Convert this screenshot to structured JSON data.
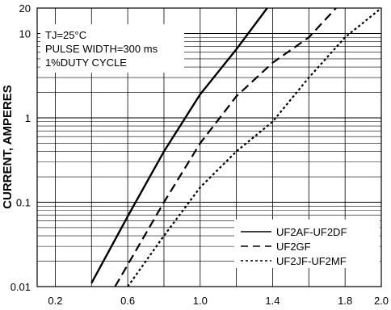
{
  "chart_data": {
    "type": "line",
    "title": "",
    "xlabel": "",
    "ylabel": "CURRENT, AMPERES",
    "xlim": [
      0.1,
      2.0
    ],
    "ylim": [
      0.01,
      20
    ],
    "yscale": "log",
    "grid": true,
    "x_ticks": [
      0.2,
      0.6,
      1.0,
      1.4,
      1.8,
      2.0
    ],
    "x_tick_labels": [
      "0.2",
      "0.6",
      "1.0",
      "1.4",
      "1.8",
      "2.0"
    ],
    "y_ticks": [
      0.01,
      0.1,
      1,
      10,
      20
    ],
    "y_tick_labels": [
      "0.01",
      "0.1",
      "1",
      "10",
      "20"
    ],
    "conditions": [
      "TJ=25°C",
      "PULSE WIDTH=300 ms",
      "1%DUTY CYCLE"
    ],
    "legend_position": "bottom-right",
    "series": [
      {
        "name": "UF2AF-UF2DF",
        "style": "solid",
        "x": [
          0.4,
          0.6,
          0.8,
          1.0,
          1.2,
          1.37
        ],
        "y": [
          0.011,
          0.068,
          0.4,
          1.9,
          6.5,
          20
        ]
      },
      {
        "name": "UF2GF",
        "style": "dashed",
        "x": [
          0.53,
          0.8,
          1.0,
          1.2,
          1.4,
          1.6,
          1.75
        ],
        "y": [
          0.01,
          0.1,
          0.5,
          1.8,
          4.5,
          9.0,
          20
        ]
      },
      {
        "name": "UF2JF-UF2MF",
        "style": "dotted",
        "x": [
          0.6,
          0.8,
          1.0,
          1.2,
          1.4,
          1.6,
          1.8,
          2.0
        ],
        "y": [
          0.01,
          0.04,
          0.15,
          0.4,
          0.9,
          3.0,
          9.0,
          20
        ]
      }
    ]
  }
}
